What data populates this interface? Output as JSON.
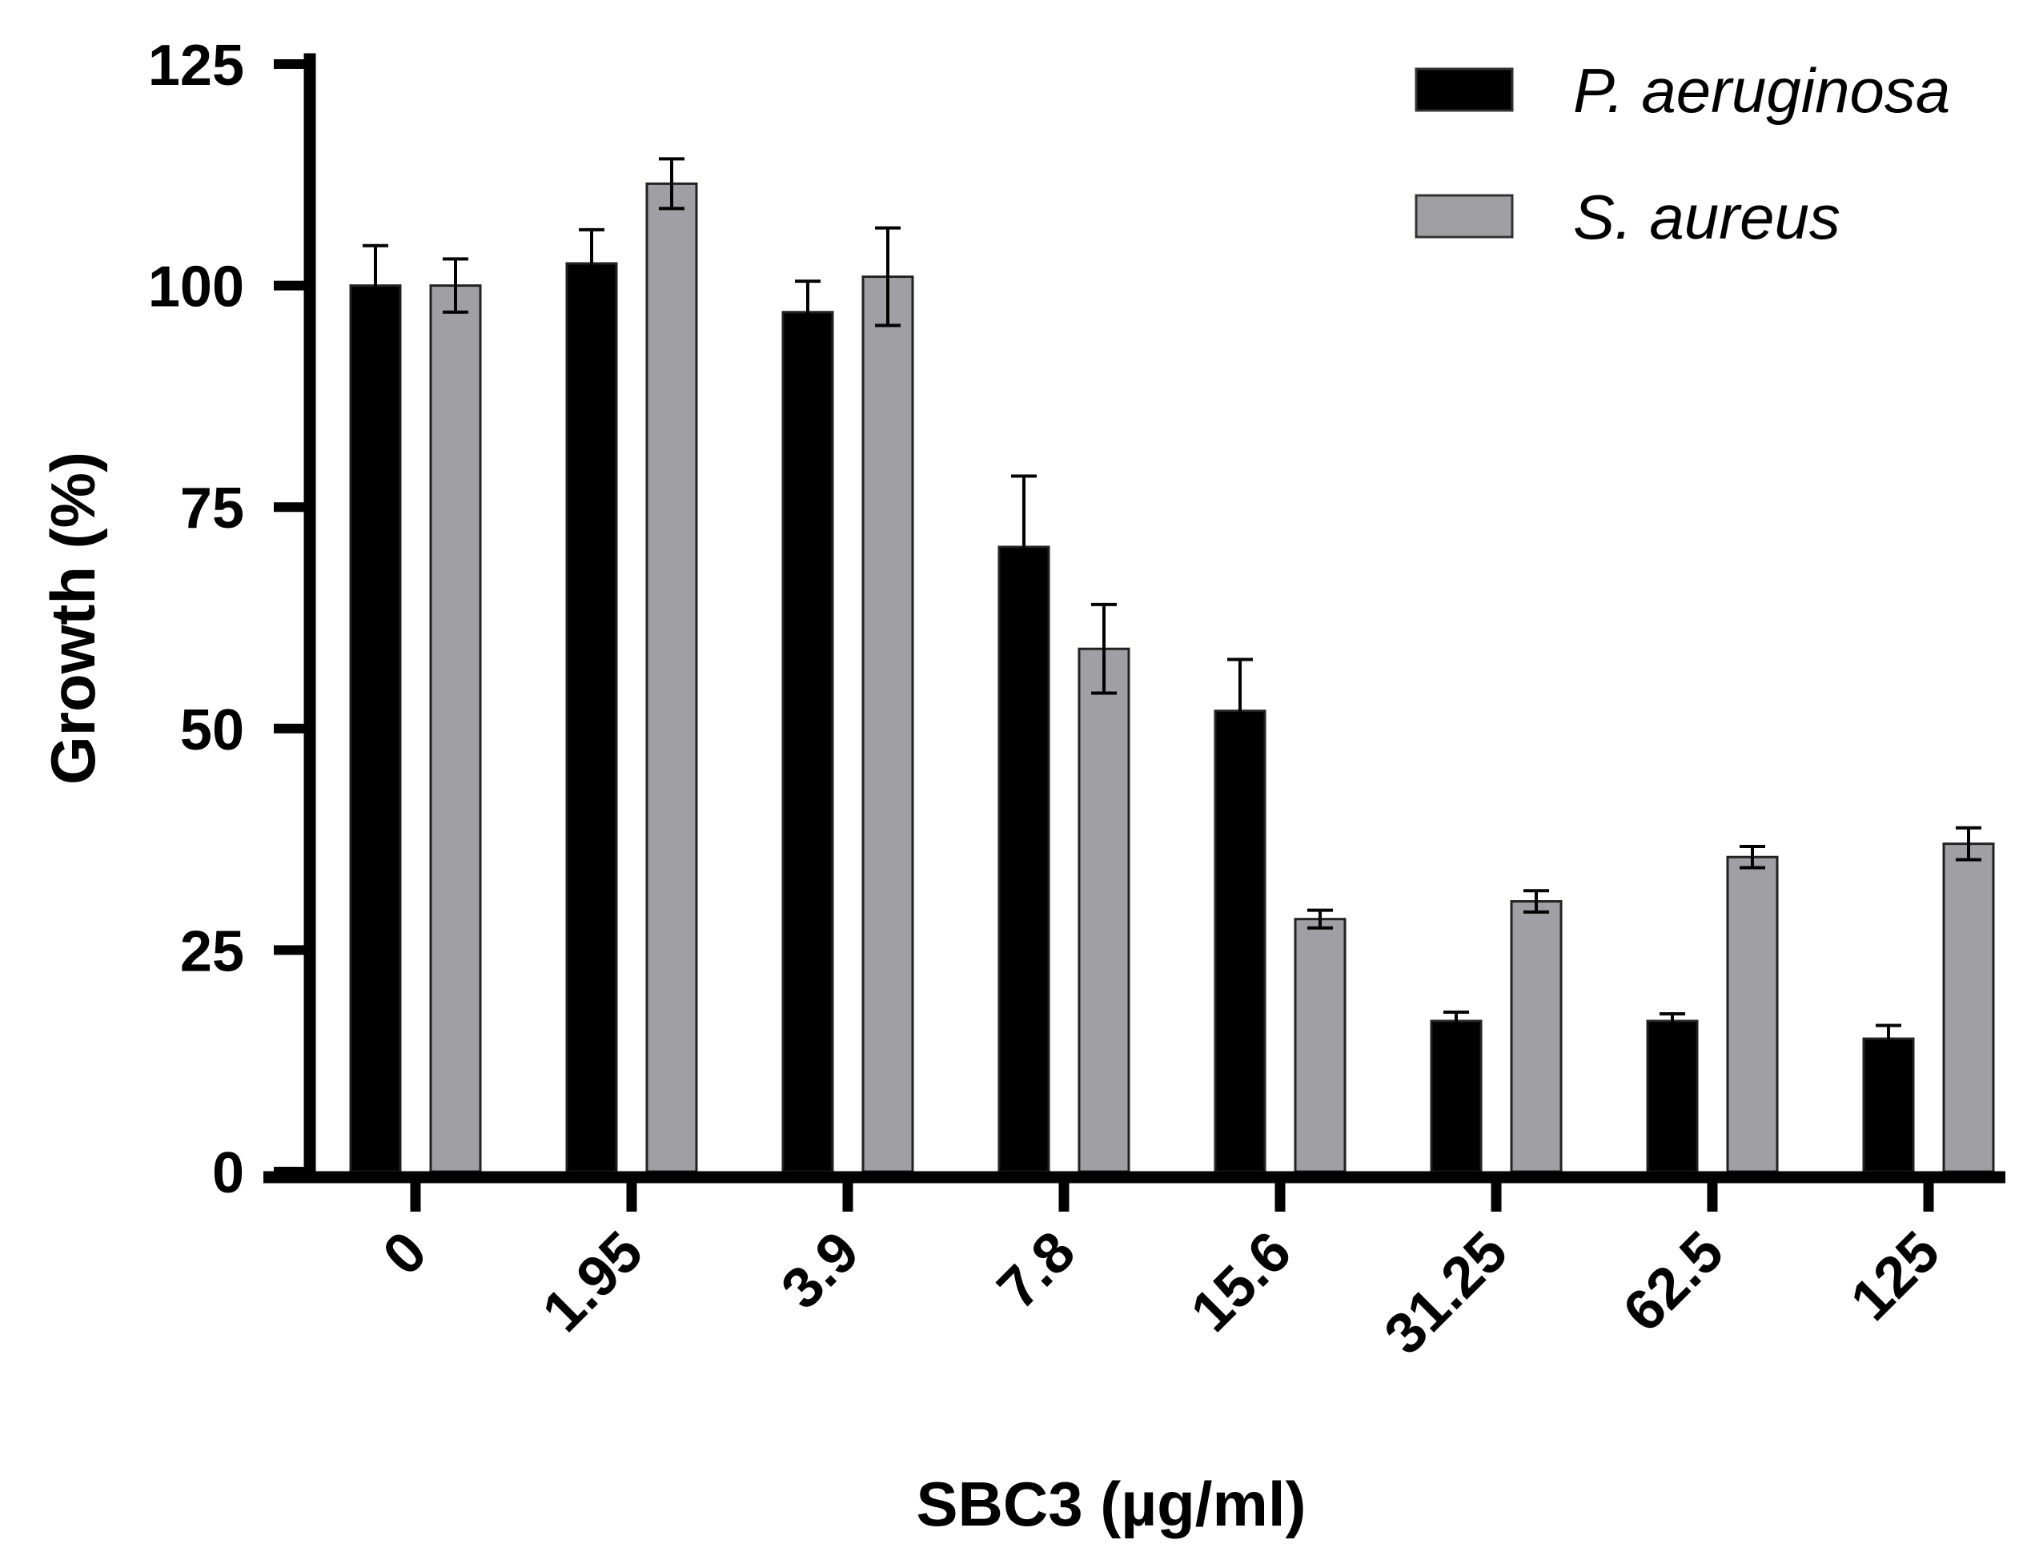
{
  "chart_data": {
    "type": "bar",
    "title": "",
    "xlabel": "SBC3 (µg/ml)",
    "ylabel": "Growth (%)",
    "categories": [
      "0",
      "1.95",
      "3.9",
      "7.8",
      "15.6",
      "31.25",
      "62.5",
      "125"
    ],
    "ylim": [
      0,
      125
    ],
    "yticks": [
      0,
      25,
      50,
      75,
      100,
      125
    ],
    "grid": false,
    "legend_position": "top-right",
    "series": [
      {
        "name": "P. aeruginosa",
        "color": "#000000",
        "values": [
          100,
          102.5,
          97,
          70.5,
          52,
          17,
          17,
          15
        ],
        "errors": [
          4.5,
          3.8,
          3.5,
          8,
          5.8,
          1,
          0.8,
          1.5
        ]
      },
      {
        "name": "S. aureus",
        "color": "#a0a0a4",
        "values": [
          100,
          111.5,
          101,
          59,
          28.5,
          30.5,
          35.5,
          37
        ],
        "errors": [
          3,
          2.8,
          5.5,
          5,
          1,
          1.2,
          1.2,
          1.8
        ]
      }
    ]
  }
}
